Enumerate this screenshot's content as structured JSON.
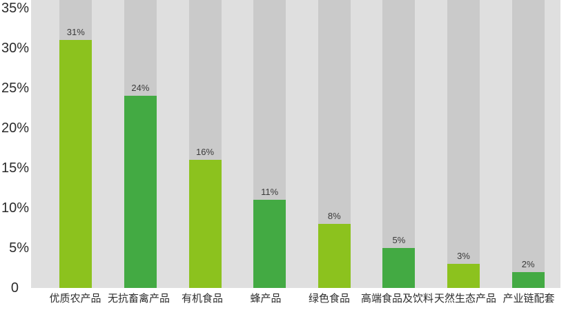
{
  "chart_data": {
    "type": "bar",
    "categories": [
      "优质农产品",
      "无抗畜禽产品",
      "有机食品",
      "蜂产品",
      "绿色食品",
      "高端食品及饮料",
      "天然生态产品",
      "产业链配套"
    ],
    "values": [
      31,
      24,
      16,
      11,
      8,
      5,
      3,
      2
    ],
    "value_labels": [
      "31%",
      "24%",
      "16%",
      "11%",
      "8%",
      "5%",
      "3%",
      "2%"
    ],
    "title": "",
    "xlabel": "",
    "ylabel": "",
    "ylim": [
      0,
      36
    ],
    "y_ticks": [
      {
        "value": 35,
        "label": "35%"
      },
      {
        "value": 30,
        "label": "30%"
      },
      {
        "value": 25,
        "label": "25%"
      },
      {
        "value": 20,
        "label": "20%"
      },
      {
        "value": 15,
        "label": "15%"
      },
      {
        "value": 10,
        "label": "10%"
      },
      {
        "value": 5,
        "label": "5%"
      },
      {
        "value": 0,
        "label": "0"
      }
    ],
    "grid": false,
    "legend": false,
    "bar_color_pattern": "alternating"
  },
  "colors": {
    "page_background": "#ffffff",
    "plot_background": "#dfdfdf",
    "column_track": "#cacaca",
    "bar_light_green": "#8cc21e",
    "bar_dark_green": "#43aa43",
    "axis_tick_text": "#2b2b2b",
    "value_label_text": "#3a3a3a",
    "category_label_text": "#2d2d2d"
  }
}
